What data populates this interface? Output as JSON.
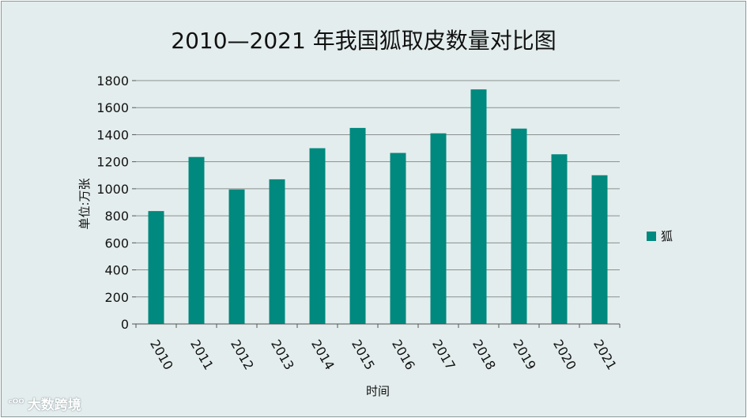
{
  "chart_data": {
    "type": "bar",
    "title": "2010—2021 年我国狐取皮数量对比图",
    "xlabel": "时间",
    "ylabel": "单位:万张",
    "ylim": [
      0,
      1800
    ],
    "yticks": [
      0,
      200,
      400,
      600,
      800,
      1000,
      1200,
      1400,
      1600,
      1800
    ],
    "categories": [
      "2010",
      "2011",
      "2012",
      "2013",
      "2014",
      "2015",
      "2016",
      "2017",
      "2018",
      "2019",
      "2020",
      "2021"
    ],
    "series": [
      {
        "name": "狐",
        "values": [
          835,
          1235,
          995,
          1070,
          1300,
          1450,
          1265,
          1410,
          1735,
          1445,
          1255,
          1100
        ],
        "color": "#00897e"
      }
    ],
    "grid": true,
    "legend": "right"
  },
  "watermark": {
    "logo": "ᶜᴼᴼ",
    "text": "大数跨境"
  }
}
